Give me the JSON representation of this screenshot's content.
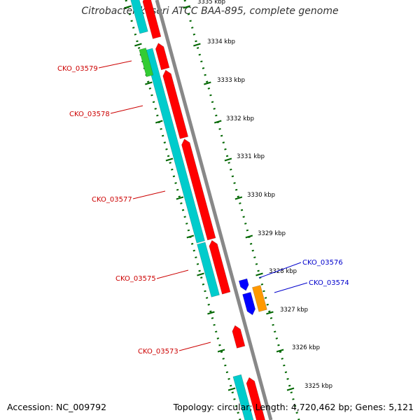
{
  "title": "Citrobacter koseri ATCC BAA-895, complete genome",
  "footer": {
    "accession": "Accession: NC_009792",
    "topology": "Topology: circular; Length: 4,720,462 bp; Genes: 5,121"
  },
  "ticks": [
    "3335 kbp",
    "3334 kbp",
    "3333 kbp",
    "3332 kbp",
    "3331 kbp",
    "3330 kbp",
    "3329 kbp",
    "3328 kbp",
    "3327 kbp",
    "3326 kbp",
    "3325 kbp"
  ],
  "gene_labels": [
    {
      "name": "CKO_03579",
      "color": "#cc0000"
    },
    {
      "name": "CKO_03578",
      "color": "#cc0000"
    },
    {
      "name": "CKO_03577",
      "color": "#cc0000"
    },
    {
      "name": "CKO_03575",
      "color": "#cc0000"
    },
    {
      "name": "CKO_03573",
      "color": "#cc0000"
    },
    {
      "name": "CKO_03576",
      "color": "#0000cc"
    },
    {
      "name": "CKO_03574",
      "color": "#0000cc"
    }
  ],
  "colors": {
    "forward_cds": "#ff0000",
    "cds_feature": "#00cccc",
    "rrna_gene": "#33cc33",
    "reverse_cds": "#0000ff",
    "other_gene": "#ff9900",
    "backbone": "#888888",
    "tick": "#006600"
  }
}
